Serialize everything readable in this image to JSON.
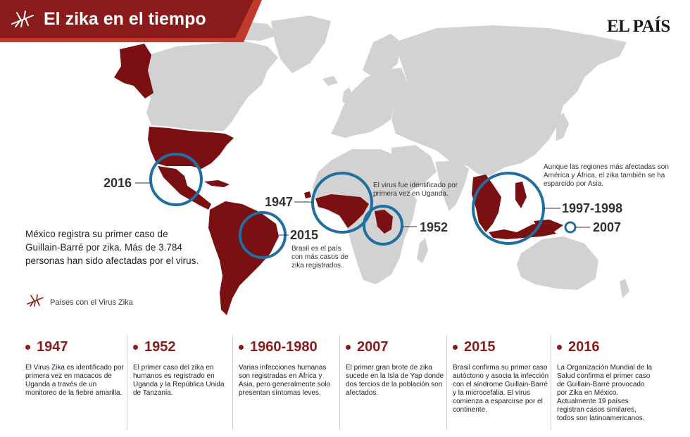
{
  "header": {
    "title": "El zika en el tiempo",
    "brand": "EL PAÍS",
    "icon": "mosquito-icon"
  },
  "colors": {
    "infected": "#7a1012",
    "land": "#d2d2d2",
    "circle": "#1f6fa0",
    "banner": "#8a1b1b",
    "banner_accent": "#c0392b"
  },
  "map": {
    "labels": {
      "y2016": "2016",
      "y1947": "1947",
      "y2015": "2015",
      "y1952": "1952",
      "y1997": "1997-1998",
      "y2007": "2007"
    },
    "notes": {
      "uganda": "El virus fue identificado por primera vez en Uganda.",
      "brasil": "Brasil es el país con más casos de zika registrados.",
      "asia": "Aunque las regiones más afectadas son América y África, el zika también se ha esparcido por Asia."
    },
    "mexico_note": "México registra su primer caso de Guillain-Barré por zika. Más de 3.784 personas han sido afectadas por el virus."
  },
  "legend": {
    "icon": "mosquito-icon",
    "label": "Países con el Virus Zika"
  },
  "timeline": [
    {
      "year": "1947",
      "text": "El Virus Zika es identificado por primera vez en macacos de Uganda a través de un monitoreo de la fiebre amarilla."
    },
    {
      "year": "1952",
      "text": "El primer caso del zika en humanos es registrado en Uganda y la República Unida de Tanzania."
    },
    {
      "year": "1960-1980",
      "text": "Varias infecciones humanas son registradas en África y Asia, pero generalmente solo presentan síntomas leves."
    },
    {
      "year": "2007",
      "text": "El primer gran brote de zika sucede en la Isla de Yap donde dos tercios de la población son afectados."
    },
    {
      "year": "2015",
      "text": "Brasil confirma su primer caso autóctono y asocia la infección con el síndrome Guillain-Barré y la microcefalia. El virus comienza a esparcirse por el continente."
    },
    {
      "year": "2016",
      "text": "La Organización Mundial de la Salud confirma el primer caso de Guillain-Barré provocado por Zika en México. Actualmente 19 países registran casos similares, todos son latinoamericanos."
    }
  ]
}
